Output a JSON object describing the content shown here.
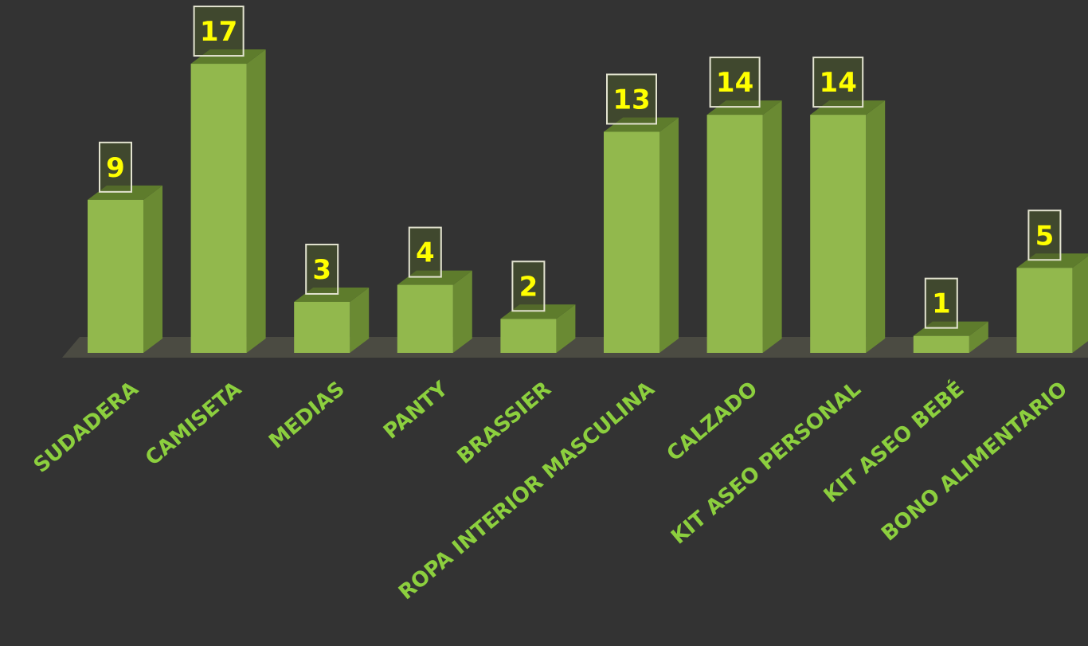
{
  "chart_data": {
    "type": "bar",
    "style": "3d-column",
    "categories": [
      "SUDADERA",
      "CAMISETA",
      "MEDIAS",
      "PANTY",
      "BRASSIER",
      "ROPA INTERIOR MASCULINA",
      "CALZADO",
      "KIT ASEO PERSONAL",
      "KIT ASEO BEBÉ",
      "BONO ALIMENTARIO"
    ],
    "values": [
      9,
      17,
      3,
      4,
      2,
      13,
      14,
      14,
      1,
      5
    ],
    "data_labels": [
      "9",
      "17",
      "3",
      "4",
      "2",
      "13",
      "14",
      "14",
      "1",
      "5"
    ],
    "ylim": [
      0,
      17
    ],
    "grid": false,
    "legend": "none"
  },
  "colors": {
    "background": "#333333",
    "bar_front": "#92b84d",
    "bar_side": "#6a8a33",
    "bar_top": "#5e7c2c",
    "floor": "#4b4b42",
    "category_label": "#8ccf3e",
    "value_label": "#ffff00",
    "value_box_border": "#e3e3d0",
    "value_box_fill": "#4a5a2a"
  }
}
